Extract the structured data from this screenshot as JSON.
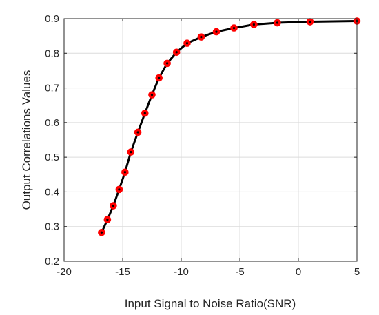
{
  "chart_data": {
    "type": "line",
    "title": "",
    "xlabel": "Input Signal to Noise Ratio(SNR)",
    "ylabel": "Output Correlations Values",
    "xlim": [
      -20,
      5
    ],
    "ylim": [
      0.2,
      0.9
    ],
    "xticks": [
      -20,
      -15,
      -10,
      -5,
      0,
      5
    ],
    "yticks": [
      0.2,
      0.3,
      0.4,
      0.5,
      0.6,
      0.7,
      0.8,
      0.9
    ],
    "xtick_labels": [
      "-20",
      "-15",
      "-10",
      "-5",
      "0",
      "5"
    ],
    "ytick_labels": [
      "0.2",
      "0.3",
      "0.4",
      "0.5",
      "0.6",
      "0.7",
      "0.8",
      "0.9"
    ],
    "grid": true,
    "legend": "none",
    "series": [
      {
        "x": [
          -16.8,
          -16.3,
          -15.8,
          -15.3,
          -14.8,
          -14.3,
          -13.7,
          -13.1,
          -12.5,
          -11.9,
          -11.2,
          -10.4,
          -9.5,
          -8.3,
          -7.0,
          -5.5,
          -3.8,
          -1.8,
          1.0,
          5.0
        ],
        "y": [
          0.283,
          0.32,
          0.36,
          0.407,
          0.457,
          0.515,
          0.572,
          0.627,
          0.68,
          0.729,
          0.771,
          0.803,
          0.829,
          0.847,
          0.862,
          0.873,
          0.883,
          0.888,
          0.891,
          0.893
        ],
        "line_color": "#000000",
        "marker_color": "#ff0000"
      }
    ]
  }
}
